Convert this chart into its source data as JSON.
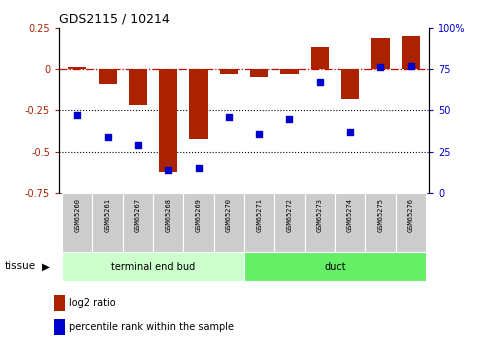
{
  "title": "GDS2115 / 10214",
  "samples": [
    "GSM65260",
    "GSM65261",
    "GSM65267",
    "GSM65268",
    "GSM65269",
    "GSM65270",
    "GSM65271",
    "GSM65272",
    "GSM65273",
    "GSM65274",
    "GSM65275",
    "GSM65276"
  ],
  "log2_ratio": [
    0.01,
    -0.09,
    -0.22,
    -0.62,
    -0.42,
    -0.03,
    -0.05,
    -0.03,
    0.13,
    -0.18,
    0.19,
    0.2
  ],
  "percentile_rank": [
    47,
    34,
    29,
    14,
    15,
    46,
    36,
    45,
    67,
    37,
    76,
    77
  ],
  "groups": [
    {
      "label": "terminal end bud",
      "start": 0,
      "end": 5,
      "color": "#ccffcc"
    },
    {
      "label": "duct",
      "start": 6,
      "end": 11,
      "color": "#66ee66"
    }
  ],
  "ylim_left": [
    -0.75,
    0.25
  ],
  "ylim_right": [
    0,
    100
  ],
  "left_yticks": [
    -0.75,
    -0.5,
    -0.25,
    0,
    0.25
  ],
  "right_yticks": [
    0,
    25,
    50,
    75,
    100
  ],
  "hlines": [
    -0.5,
    -0.25
  ],
  "bar_color": "#aa2200",
  "dot_color": "#0000cc",
  "tissue_label": "tissue",
  "legend_bar": "log2 ratio",
  "legend_dot": "percentile rank within the sample",
  "sample_box_color": "#cccccc",
  "zero_line_color": "#cc0000",
  "hline_color": "#000000"
}
